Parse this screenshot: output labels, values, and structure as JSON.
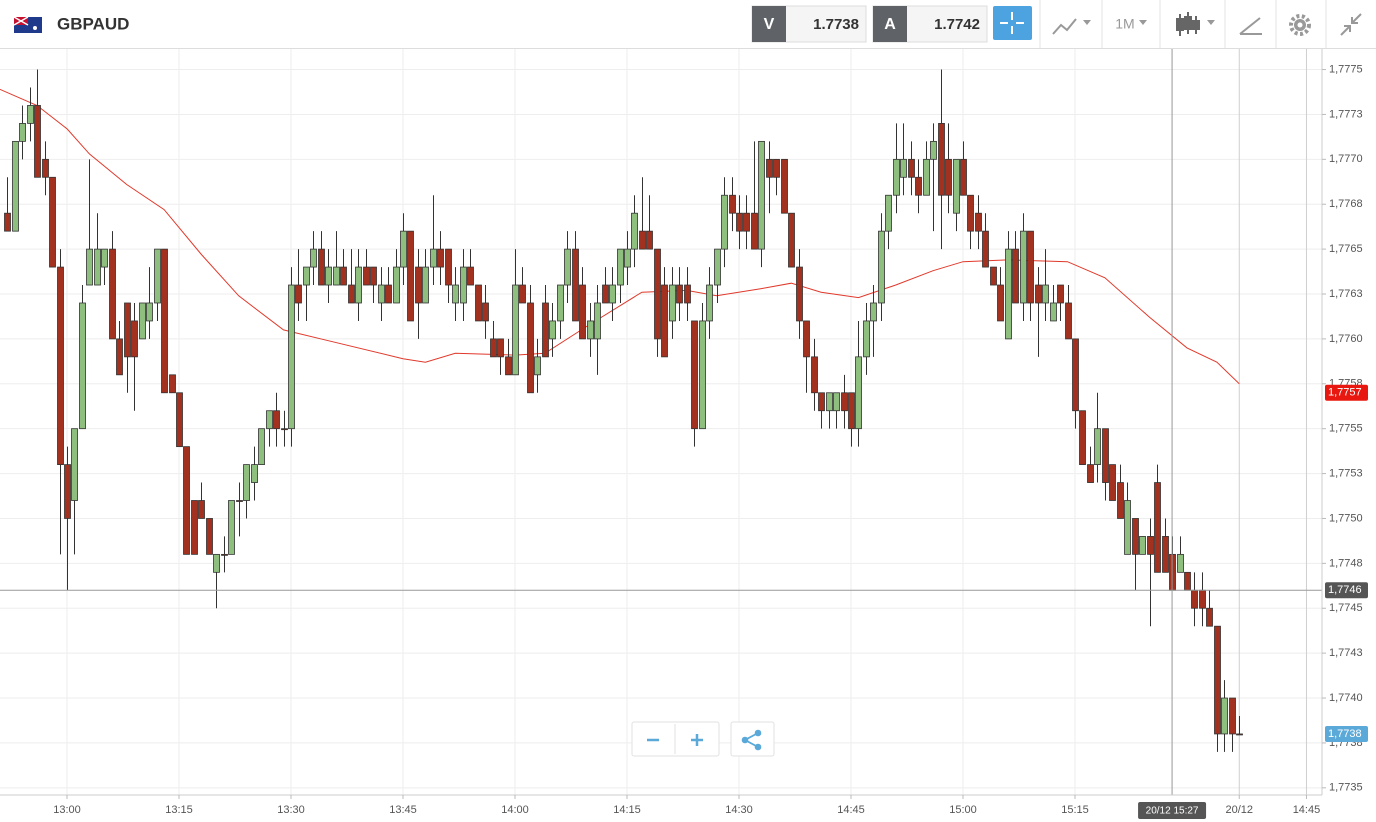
{
  "toolbar": {
    "symbol": "GBPAUD",
    "sell_label": "V",
    "sell_price": "1.7738",
    "buy_label": "A",
    "buy_price": "1.7742",
    "timeframe": "1M"
  },
  "chart_data": {
    "type": "candlestick",
    "up_color": "#8fbf7f",
    "down_color": "#a3311f",
    "x": [
      "12:52",
      "12:53",
      "12:54",
      "12:55",
      "12:56",
      "12:57",
      "12:58",
      "12:59",
      "13:00",
      "13:01",
      "13:02",
      "13:03",
      "13:04",
      "13:05",
      "13:06",
      "13:07",
      "13:08",
      "13:09",
      "13:10",
      "13:11",
      "13:12",
      "13:13",
      "13:14",
      "13:15",
      "13:16",
      "13:17",
      "13:18",
      "13:19",
      "13:20",
      "13:21",
      "13:22",
      "13:23",
      "13:24",
      "13:25",
      "13:26",
      "13:27",
      "13:28",
      "13:29",
      "13:30",
      "13:31",
      "13:32",
      "13:33",
      "13:34",
      "13:35",
      "13:36",
      "13:37",
      "13:38",
      "13:39",
      "13:40",
      "13:41",
      "13:42",
      "13:43",
      "13:44",
      "13:45",
      "13:46",
      "13:47",
      "13:48",
      "13:49",
      "13:50",
      "13:51",
      "13:52",
      "13:53",
      "13:54",
      "13:55",
      "13:56",
      "13:57",
      "13:58",
      "13:59",
      "14:00",
      "14:01",
      "14:02",
      "14:03",
      "14:04",
      "14:05",
      "14:06",
      "14:07",
      "14:08",
      "14:09",
      "14:10",
      "14:11",
      "14:12",
      "14:13",
      "14:14",
      "14:15",
      "14:16",
      "14:17",
      "14:18",
      "14:19",
      "14:20",
      "14:21",
      "14:22",
      "14:23",
      "14:24",
      "14:25",
      "14:26",
      "14:27",
      "14:28",
      "14:29",
      "14:30",
      "14:31",
      "14:32",
      "14:33",
      "14:34",
      "14:35",
      "14:36",
      "14:37",
      "14:38",
      "14:39",
      "14:40",
      "14:41",
      "14:42",
      "14:43",
      "14:44",
      "14:45",
      "14:46",
      "14:47",
      "14:48",
      "14:49",
      "14:50",
      "14:51",
      "14:52",
      "14:53",
      "14:54",
      "14:55",
      "14:56",
      "14:57",
      "14:58",
      "14:59",
      "15:00",
      "15:01",
      "15:02",
      "15:03",
      "15:04",
      "15:05",
      "15:06",
      "15:07",
      "15:08",
      "15:09",
      "15:10",
      "15:11",
      "15:12",
      "15:13",
      "15:14",
      "15:15",
      "15:16",
      "15:17",
      "15:18",
      "15:19",
      "15:20",
      "15:21",
      "15:22",
      "15:23",
      "15:24",
      "15:25",
      "15:26",
      "15:27",
      "15:28",
      "15:29",
      "15:30",
      "15:31",
      "15:32",
      "15:33",
      "15:34",
      "15:35",
      "15:36",
      "15:37"
    ],
    "open": [
      1.7767,
      1.7766,
      1.7771,
      1.7772,
      1.7773,
      1.777,
      1.7769,
      1.7764,
      1.7753,
      1.7751,
      1.7755,
      1.7763,
      1.7763,
      1.7764,
      1.7765,
      1.776,
      1.7762,
      1.7761,
      1.776,
      1.7761,
      1.7762,
      1.7765,
      1.7758,
      1.7757,
      1.7754,
      1.7751,
      1.7751,
      1.775,
      1.7747,
      1.7748,
      1.7748,
      1.7751,
      1.7751,
      1.7752,
      1.7753,
      1.7755,
      1.7756,
      1.7755,
      1.7755,
      1.7763,
      1.7763,
      1.7764,
      1.7765,
      1.7763,
      1.7763,
      1.7764,
      1.7763,
      1.7762,
      1.7764,
      1.7764,
      1.7762,
      1.7763,
      1.7762,
      1.7764,
      1.7766,
      1.7764,
      1.7762,
      1.7764,
      1.7765,
      1.7765,
      1.7762,
      1.7762,
      1.7764,
      1.7763,
      1.7762,
      1.776,
      1.776,
      1.7759,
      1.7758,
      1.7763,
      1.7762,
      1.7758,
      1.7762,
      1.776,
      1.7761,
      1.7763,
      1.7765,
      1.7763,
      1.776,
      1.776,
      1.7763,
      1.7762,
      1.7763,
      1.7764,
      1.7765,
      1.7766,
      1.7766,
      1.7765,
      1.7763,
      1.7761,
      1.7763,
      1.7763,
      1.7761,
      1.7755,
      1.7761,
      1.7763,
      1.7765,
      1.7768,
      1.7767,
      1.7767,
      1.7767,
      1.7765,
      1.777,
      1.777,
      1.777,
      1.7767,
      1.7764,
      1.7761,
      1.7759,
      1.7757,
      1.7756,
      1.7756,
      1.7757,
      1.7757,
      1.7755,
      1.7759,
      1.7761,
      1.7762,
      1.7766,
      1.7768,
      1.7769,
      1.777,
      1.7769,
      1.7768,
      1.777,
      1.7772,
      1.777,
      1.7767,
      1.777,
      1.7768,
      1.7767,
      1.7766,
      1.7764,
      1.7763,
      1.776,
      1.7765,
      1.7762,
      1.7766,
      1.7763,
      1.7762,
      1.7761,
      1.7763,
      1.7762,
      1.776,
      1.7756,
      1.7753,
      1.7753,
      1.7755,
      1.7753,
      1.7752,
      1.7748,
      1.775,
      1.7748,
      1.7749,
      1.7752,
      1.7749,
      1.7748,
      1.7747,
      1.7747,
      1.7746,
      1.7746,
      1.7745,
      1.7744,
      1.7738,
      1.774,
      1.7738
    ],
    "high": [
      1.7769,
      1.7771,
      1.7773,
      1.7774,
      1.7775,
      1.7771,
      1.7769,
      1.7765,
      1.7754,
      1.7755,
      1.7763,
      1.777,
      1.7767,
      1.7765,
      1.7766,
      1.7761,
      1.7762,
      1.7762,
      1.7762,
      1.7764,
      1.7765,
      1.7765,
      1.7758,
      1.7757,
      1.7754,
      1.7751,
      1.7752,
      1.775,
      1.7748,
      1.7749,
      1.7751,
      1.7752,
      1.7753,
      1.7754,
      1.7755,
      1.7756,
      1.7757,
      1.7756,
      1.7764,
      1.7765,
      1.7764,
      1.7766,
      1.7766,
      1.7765,
      1.7766,
      1.7765,
      1.7765,
      1.7765,
      1.7765,
      1.7764,
      1.7764,
      1.7764,
      1.7765,
      1.7767,
      1.7766,
      1.7765,
      1.7765,
      1.7768,
      1.7766,
      1.7765,
      1.7764,
      1.7765,
      1.7765,
      1.7763,
      1.7763,
      1.7761,
      1.776,
      1.776,
      1.7765,
      1.7764,
      1.7763,
      1.776,
      1.7763,
      1.7762,
      1.7763,
      1.7766,
      1.7766,
      1.7764,
      1.7762,
      1.7763,
      1.7764,
      1.7764,
      1.7765,
      1.7766,
      1.7768,
      1.7769,
      1.7768,
      1.7765,
      1.7764,
      1.7764,
      1.7764,
      1.7764,
      1.7761,
      1.7762,
      1.7764,
      1.7765,
      1.7769,
      1.7769,
      1.7768,
      1.7768,
      1.7771,
      1.7771,
      1.7771,
      1.777,
      1.777,
      1.7767,
      1.7765,
      1.7761,
      1.776,
      1.7757,
      1.7757,
      1.7757,
      1.7758,
      1.7757,
      1.7761,
      1.7762,
      1.7763,
      1.7767,
      1.7768,
      1.7772,
      1.7772,
      1.7771,
      1.777,
      1.7771,
      1.7772,
      1.7775,
      1.7772,
      1.777,
      1.7771,
      1.7768,
      1.7768,
      1.7767,
      1.7764,
      1.7764,
      1.7766,
      1.7766,
      1.7767,
      1.7766,
      1.7764,
      1.7765,
      1.7763,
      1.7763,
      1.7763,
      1.776,
      1.7756,
      1.7754,
      1.7757,
      1.7755,
      1.7753,
      1.7753,
      1.7752,
      1.775,
      1.7749,
      1.775,
      1.7753,
      1.775,
      1.7749,
      1.7749,
      1.7747,
      1.7747,
      1.7747,
      1.7746,
      1.7744,
      1.7741,
      1.774,
      1.7739
    ],
    "low": [
      1.7766,
      1.7766,
      1.777,
      1.7771,
      1.7769,
      1.7768,
      1.7764,
      1.7748,
      1.7746,
      1.7748,
      1.7755,
      1.7763,
      1.7763,
      1.7763,
      1.776,
      1.7758,
      1.7757,
      1.7756,
      1.776,
      1.776,
      1.7761,
      1.7757,
      1.7757,
      1.7754,
      1.7748,
      1.7748,
      1.775,
      1.7748,
      1.7745,
      1.7747,
      1.7748,
      1.7749,
      1.775,
      1.7751,
      1.7753,
      1.7754,
      1.7754,
      1.7754,
      1.7754,
      1.7761,
      1.7761,
      1.7763,
      1.7763,
      1.7762,
      1.7763,
      1.7763,
      1.7762,
      1.7761,
      1.7763,
      1.7762,
      1.7761,
      1.7762,
      1.7762,
      1.7763,
      1.7761,
      1.776,
      1.7762,
      1.7763,
      1.7763,
      1.7762,
      1.7761,
      1.7761,
      1.7763,
      1.7761,
      1.776,
      1.7759,
      1.7758,
      1.7758,
      1.7758,
      1.7762,
      1.7757,
      1.7757,
      1.7759,
      1.7759,
      1.776,
      1.7762,
      1.7761,
      1.776,
      1.7759,
      1.7758,
      1.7762,
      1.7761,
      1.7762,
      1.7763,
      1.7764,
      1.7765,
      1.7765,
      1.7759,
      1.7759,
      1.776,
      1.7761,
      1.7761,
      1.7754,
      1.7755,
      1.776,
      1.7762,
      1.7764,
      1.7766,
      1.7765,
      1.7765,
      1.7765,
      1.7764,
      1.7767,
      1.7768,
      1.7767,
      1.7764,
      1.776,
      1.7757,
      1.7756,
      1.7755,
      1.7755,
      1.7755,
      1.7755,
      1.7754,
      1.7754,
      1.7758,
      1.7759,
      1.7761,
      1.7765,
      1.7767,
      1.7768,
      1.7768,
      1.7767,
      1.7768,
      1.7766,
      1.7765,
      1.7767,
      1.7766,
      1.7768,
      1.7765,
      1.7765,
      1.7764,
      1.7763,
      1.7761,
      1.776,
      1.7762,
      1.7761,
      1.7761,
      1.7759,
      1.7761,
      1.7761,
      1.7761,
      1.776,
      1.7755,
      1.7753,
      1.7752,
      1.7752,
      1.7751,
      1.7751,
      1.775,
      1.7748,
      1.7746,
      1.7748,
      1.7744,
      1.7747,
      1.7747,
      1.7746,
      1.7747,
      1.7746,
      1.7744,
      1.7744,
      1.7744,
      1.7737,
      1.7737,
      1.7737,
      1.7738
    ],
    "close": [
      1.7766,
      1.7771,
      1.7772,
      1.7773,
      1.7769,
      1.7769,
      1.7764,
      1.7753,
      1.775,
      1.7755,
      1.7762,
      1.7765,
      1.7765,
      1.7765,
      1.776,
      1.7758,
      1.7759,
      1.7759,
      1.7762,
      1.7762,
      1.7765,
      1.7757,
      1.7757,
      1.7754,
      1.7748,
      1.7748,
      1.775,
      1.7748,
      1.7748,
      1.7748,
      1.7751,
      1.7751,
      1.7753,
      1.7753,
      1.7755,
      1.7756,
      1.7755,
      1.7755,
      1.7763,
      1.7762,
      1.7764,
      1.7765,
      1.7763,
      1.7764,
      1.7764,
      1.7763,
      1.7762,
      1.7764,
      1.7763,
      1.7763,
      1.7763,
      1.7762,
      1.7764,
      1.7766,
      1.7761,
      1.7762,
      1.7764,
      1.7765,
      1.7764,
      1.7763,
      1.7763,
      1.7764,
      1.7763,
      1.7761,
      1.7761,
      1.7759,
      1.7759,
      1.7758,
      1.7763,
      1.7762,
      1.7757,
      1.7759,
      1.7759,
      1.7761,
      1.7763,
      1.7765,
      1.7761,
      1.776,
      1.7761,
      1.7762,
      1.7762,
      1.7763,
      1.7765,
      1.7765,
      1.7767,
      1.7765,
      1.7765,
      1.776,
      1.7759,
      1.7763,
      1.7762,
      1.7762,
      1.7755,
      1.7761,
      1.7763,
      1.7765,
      1.7768,
      1.7767,
      1.7766,
      1.7766,
      1.7765,
      1.7771,
      1.7769,
      1.7769,
      1.7767,
      1.7764,
      1.7761,
      1.7759,
      1.7757,
      1.7756,
      1.7757,
      1.7757,
      1.7756,
      1.7755,
      1.7759,
      1.7761,
      1.7762,
      1.7766,
      1.7768,
      1.777,
      1.777,
      1.7769,
      1.7768,
      1.777,
      1.7771,
      1.7768,
      1.7768,
      1.777,
      1.7768,
      1.7766,
      1.7766,
      1.7764,
      1.7763,
      1.7761,
      1.7765,
      1.7762,
      1.7766,
      1.7762,
      1.7762,
      1.7763,
      1.7762,
      1.7762,
      1.776,
      1.7756,
      1.7753,
      1.7752,
      1.7755,
      1.7752,
      1.7751,
      1.775,
      1.7751,
      1.7748,
      1.7749,
      1.7748,
      1.7747,
      1.7747,
      1.7746,
      1.7748,
      1.7746,
      1.7745,
      1.7745,
      1.7744,
      1.7738,
      1.774,
      1.7738,
      1.7738
    ],
    "moving_average": {
      "color": "#e0392b",
      "x": [
        "12:51",
        "12:56",
        "13:00",
        "13:03",
        "13:08",
        "13:13",
        "13:18",
        "13:23",
        "13:29",
        "13:35",
        "13:45",
        "13:48",
        "13:52",
        "14:00",
        "14:04",
        "14:10",
        "14:17",
        "14:23",
        "14:27",
        "14:33",
        "14:37",
        "14:41",
        "14:46",
        "14:51",
        "14:56",
        "15:00",
        "15:06",
        "15:14",
        "15:19",
        "15:25",
        "15:30",
        "15:34",
        "15:37"
      ],
      "values": [
        1.77739,
        1.7773,
        1.77717,
        1.77703,
        1.77686,
        1.77672,
        1.77647,
        1.77624,
        1.77605,
        1.77599,
        1.77589,
        1.77587,
        1.77592,
        1.77591,
        1.77592,
        1.77608,
        1.77626,
        1.77627,
        1.77624,
        1.77628,
        1.77631,
        1.77626,
        1.77623,
        1.7763,
        1.77638,
        1.77643,
        1.77644,
        1.77643,
        1.77634,
        1.77612,
        1.77595,
        1.77587,
        1.77575
      ]
    },
    "ylim": [
      1.77346,
      1.77762
    ],
    "yticks": [
      {
        "value": 1.7735,
        "label": "1,7735"
      },
      {
        "value": 1.77375,
        "label": "1,7738"
      },
      {
        "value": 1.774,
        "label": "1,7740"
      },
      {
        "value": 1.77425,
        "label": "1,7743"
      },
      {
        "value": 1.7745,
        "label": "1,7745"
      },
      {
        "value": 1.77475,
        "label": "1,7748"
      },
      {
        "value": 1.775,
        "label": "1,7750"
      },
      {
        "value": 1.77525,
        "label": "1,7753"
      },
      {
        "value": 1.7755,
        "label": "1,7755"
      },
      {
        "value": 1.77575,
        "label": "1,7758"
      },
      {
        "value": 1.776,
        "label": "1,7760"
      },
      {
        "value": 1.77625,
        "label": "1,7763"
      },
      {
        "value": 1.7765,
        "label": "1,7765"
      },
      {
        "value": 1.77675,
        "label": "1,7768"
      },
      {
        "value": 1.777,
        "label": "1,7770"
      },
      {
        "value": 1.77725,
        "label": "1,7773"
      },
      {
        "value": 1.7775,
        "label": "1,7775"
      }
    ],
    "xticks": [
      "13:00",
      "13:15",
      "13:30",
      "13:45",
      "14:00",
      "14:15",
      "14:30",
      "14:45",
      "15:00",
      "15:15",
      {
        "value": "15:37",
        "label": "20/12"
      },
      {
        "value": "15:46",
        "label": "14:45"
      }
    ],
    "grid": true,
    "price_markers": [
      {
        "value": 1.7757,
        "label": "1,7757",
        "color": "#e8170f"
      },
      {
        "value": 1.7738,
        "label": "1,7738",
        "color": "#5aa9d8"
      }
    ],
    "crosshair": {
      "x": "15:28",
      "x_label": "20/12 15:27",
      "y": 1.7746,
      "y_label": "1,7746",
      "color": "#555555"
    }
  }
}
